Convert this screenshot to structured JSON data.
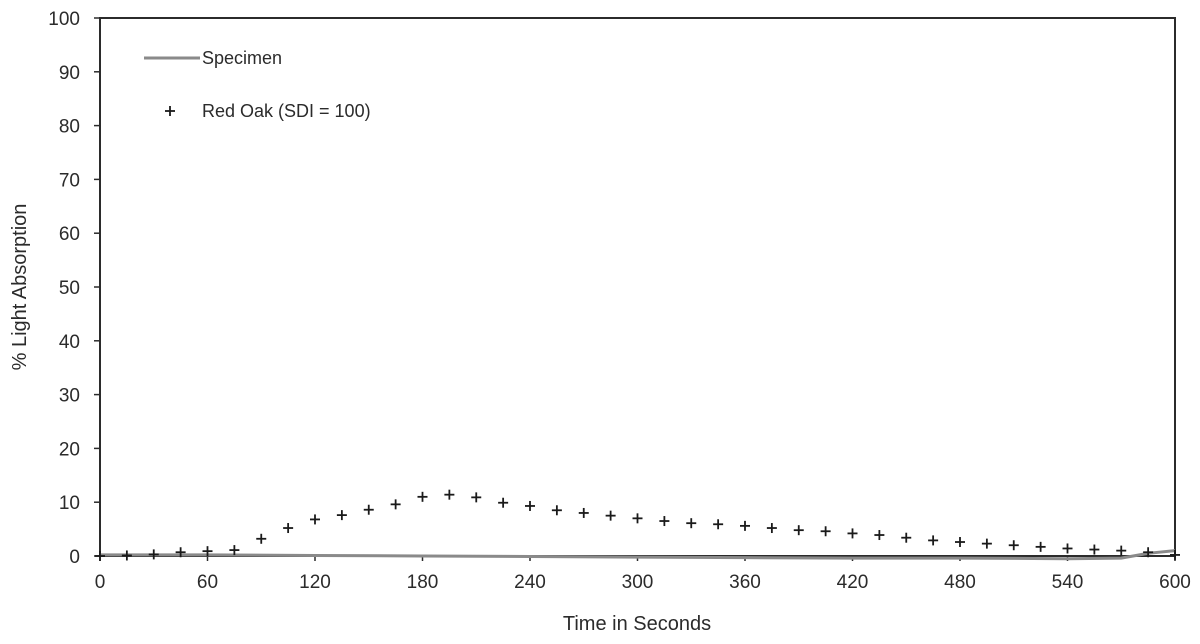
{
  "chart_data": {
    "type": "line",
    "xlabel": "Time in Seconds",
    "ylabel": "% Light Absorption",
    "xlim": [
      0,
      600
    ],
    "ylim": [
      0,
      100
    ],
    "x_ticks": [
      "0",
      "60",
      "120",
      "180",
      "240",
      "300",
      "360",
      "420",
      "480",
      "540",
      "600"
    ],
    "y_ticks": [
      "0",
      "10",
      "20",
      "30",
      "40",
      "50",
      "60",
      "70",
      "80",
      "90",
      "100"
    ],
    "grid": false,
    "legend_position": "top-left",
    "series": [
      {
        "name": "Specimen",
        "style": "line",
        "color": "#8a8a8a",
        "x": [
          0,
          60,
          120,
          180,
          240,
          300,
          360,
          420,
          480,
          540,
          570,
          585,
          600
        ],
        "y": [
          0.2,
          0.2,
          0.1,
          0.0,
          -0.1,
          -0.2,
          -0.3,
          -0.4,
          -0.4,
          -0.5,
          -0.4,
          0.5,
          1.0
        ]
      },
      {
        "name": "Red Oak (SDI = 100)",
        "style": "marker-plus",
        "color": "#1a1a1a",
        "x": [
          0,
          15,
          30,
          45,
          60,
          75,
          90,
          105,
          120,
          135,
          150,
          165,
          180,
          195,
          210,
          225,
          240,
          255,
          270,
          285,
          300,
          315,
          330,
          345,
          360,
          375,
          390,
          405,
          420,
          435,
          450,
          465,
          480,
          495,
          510,
          525,
          540,
          555,
          570,
          585,
          600
        ],
        "y": [
          0,
          0.1,
          0.3,
          0.7,
          0.9,
          1.1,
          3.2,
          5.2,
          6.8,
          7.6,
          8.6,
          9.6,
          11.0,
          11.4,
          10.9,
          9.9,
          9.3,
          8.5,
          8.0,
          7.5,
          7.0,
          6.5,
          6.1,
          5.9,
          5.6,
          5.2,
          4.8,
          4.6,
          4.2,
          3.9,
          3.4,
          2.9,
          2.6,
          2.3,
          2.0,
          1.7,
          1.4,
          1.2,
          1.0,
          0.7,
          0.2
        ]
      }
    ]
  }
}
